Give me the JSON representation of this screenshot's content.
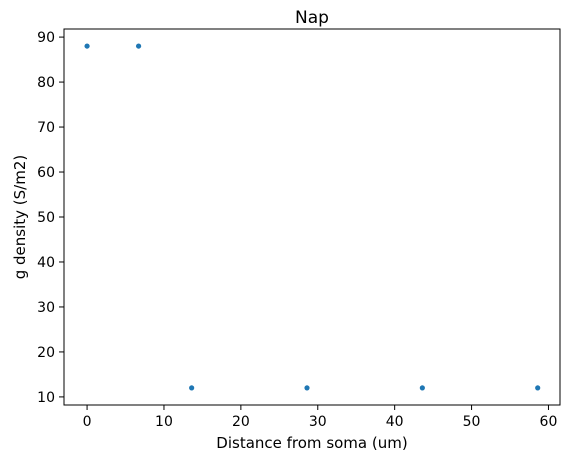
{
  "chart_data": {
    "type": "scatter",
    "title": "Nap",
    "xlabel": "Distance from soma (um)",
    "ylabel": "g density (S/m2)",
    "xlim": [
      -3.0,
      61.5
    ],
    "ylim": [
      8.2,
      91.8
    ],
    "xticks": [
      0,
      10,
      20,
      30,
      40,
      50,
      60
    ],
    "yticks": [
      10,
      20,
      30,
      40,
      50,
      60,
      70,
      80,
      90
    ],
    "grid": false,
    "legend": "none",
    "series": [
      {
        "color": "#1f77b4",
        "x": [
          0,
          6.7,
          13.6,
          28.6,
          43.6,
          58.6
        ],
        "y": [
          88,
          88,
          12,
          12,
          12,
          12
        ]
      }
    ]
  }
}
